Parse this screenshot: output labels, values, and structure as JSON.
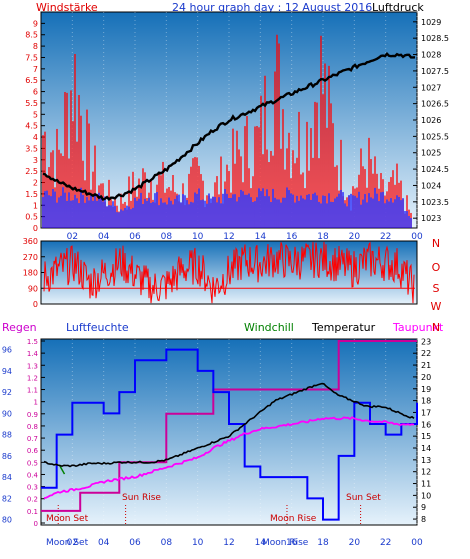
{
  "page": {
    "title": "24 hour graph day : 12 August 2016"
  },
  "colors": {
    "red": "#ff0000",
    "blue": "#0000ff",
    "black": "#000000",
    "green": "#008000",
    "magenta": "#ff00ff",
    "darkmagenta": "#cc0099",
    "sky_top": "#1a7ac2",
    "sky_bottom": "#d9ecfa"
  },
  "chart_data": [
    {
      "id": "wind_pressure",
      "type": "line",
      "title": "24 hour graph day : 12 August 2016",
      "left_label": "Windstärke",
      "right_label": "Luftdruck",
      "x_ticks": [
        "02",
        "04",
        "06",
        "08",
        "10",
        "12",
        "14",
        "16",
        "18",
        "20",
        "22",
        "00"
      ],
      "y_left_ticks": [
        "0",
        "0.5",
        "1",
        "1.5",
        "2",
        "2.5",
        "3",
        "3.5",
        "4",
        "4.5",
        "5",
        "5.5",
        "6",
        "6.5",
        "7",
        "7.5",
        "8",
        "8.5",
        "9"
      ],
      "y_right_ticks": [
        "1023",
        "1023.5",
        "1024",
        "1024.5",
        "1025",
        "1025.5",
        "1026",
        "1026.5",
        "1027",
        "1027.5",
        "1028",
        "1028.5",
        "1029"
      ],
      "ylim_left": [
        0,
        9.5
      ],
      "ylim_right": [
        1022.7,
        1029.3
      ],
      "series": [
        {
          "name": "Windstärke",
          "color": "red",
          "x": [
            0,
            1,
            2,
            3,
            4,
            5,
            6,
            7,
            8,
            9,
            10,
            11,
            12,
            13,
            14,
            15,
            16,
            17,
            18,
            19,
            20,
            21,
            22,
            23,
            24
          ],
          "values": [
            5.5,
            4,
            9,
            4,
            2,
            1.5,
            2.5,
            3,
            2.5,
            2,
            3,
            2,
            3.5,
            4.5,
            5,
            9,
            5.5,
            5,
            9,
            4.5,
            2,
            4,
            2,
            2.5,
            0.5
          ]
        },
        {
          "name": "Böen",
          "color": "blue",
          "x": [
            0,
            1,
            2,
            3,
            4,
            5,
            6,
            7,
            8,
            9,
            10,
            11,
            12,
            13,
            14,
            15,
            16,
            17,
            18,
            19,
            20,
            21,
            22,
            23,
            24
          ],
          "values": [
            1.8,
            1.8,
            1.8,
            1.8,
            1.5,
            1,
            1.5,
            1.8,
            1.5,
            1.5,
            1.8,
            1.5,
            1.8,
            1.8,
            1.8,
            1.8,
            1.8,
            1.8,
            1.8,
            1.8,
            1.5,
            1.8,
            1.8,
            1.8,
            0.5
          ]
        },
        {
          "name": "Luftdruck",
          "color": "black",
          "x": [
            0,
            1,
            2,
            3,
            4,
            5,
            6,
            7,
            8,
            9,
            10,
            11,
            12,
            13,
            14,
            15,
            16,
            17,
            18,
            19,
            20,
            21,
            22,
            23,
            24
          ],
          "values": [
            1024.4,
            1024.1,
            1023.9,
            1023.75,
            1023.6,
            1023.7,
            1023.9,
            1024.2,
            1024.5,
            1024.9,
            1025.3,
            1025.7,
            1026.0,
            1026.2,
            1026.4,
            1026.6,
            1026.8,
            1027.0,
            1027.2,
            1027.4,
            1027.6,
            1027.8,
            1028.0,
            1028.0,
            1027.9
          ]
        }
      ]
    },
    {
      "id": "wind_direction",
      "type": "line",
      "y_left_ticks": [
        "0",
        "90",
        "180",
        "270",
        "360"
      ],
      "y_right_labels": [
        "N",
        "W",
        "S",
        "O",
        "N"
      ],
      "ylim": [
        0,
        360
      ],
      "series": [
        {
          "name": "Windrichtung",
          "color": "red",
          "x": [
            0,
            1,
            2,
            3,
            4,
            5,
            6,
            7,
            8,
            9,
            10,
            11,
            12,
            13,
            14,
            15,
            16,
            17,
            18,
            19,
            20,
            21,
            22,
            23,
            24
          ],
          "values": [
            150,
            200,
            230,
            120,
            180,
            240,
            160,
            90,
            110,
            200,
            220,
            90,
            180,
            250,
            230,
            260,
            240,
            250,
            260,
            230,
            200,
            250,
            240,
            220,
            90
          ]
        }
      ]
    },
    {
      "id": "temp_humidity",
      "type": "line",
      "legend": [
        "Regen",
        "Luftfeuchte",
        "Windchill",
        "Temperatur",
        "Taupunkt"
      ],
      "y_left1_ticks": [
        "0",
        "0.1",
        "0.2",
        "0.3",
        "0.4",
        "0.5",
        "0.6",
        "0.7",
        "0.8",
        "0.9",
        "1",
        "1.1",
        "1.2",
        "1.3",
        "1.4",
        "1.5"
      ],
      "y_left2_ticks": [
        "80",
        "82",
        "84",
        "86",
        "88",
        "90",
        "92",
        "94",
        "96"
      ],
      "y_right_ticks": [
        "8",
        "9",
        "10",
        "11",
        "12",
        "13",
        "14",
        "15",
        "16",
        "17",
        "18",
        "19",
        "20",
        "21",
        "22",
        "23"
      ],
      "ylim_rain": [
        0,
        1.5
      ],
      "ylim_humidity": [
        79.5,
        97
      ],
      "ylim_temp": [
        7.5,
        23.2
      ],
      "annotations": {
        "moonset": "Moon Set",
        "sunrise": "Sun Rise",
        "moonrise": "Moon Rise",
        "sunset": "Sun Set"
      },
      "bottom_labels": [
        "Moon Set",
        "Moon Rise"
      ],
      "series": [
        {
          "name": "Regen",
          "color": "darkmagenta",
          "x": [
            0,
            2.5,
            2.5,
            5,
            5,
            8,
            8,
            11,
            11,
            12.5,
            12.5,
            19,
            19,
            24
          ],
          "values": [
            0.1,
            0.1,
            0.25,
            0.25,
            0.5,
            0.5,
            0.9,
            0.9,
            1.1,
            1.1,
            1.1,
            1.1,
            1.5,
            1.5
          ]
        },
        {
          "name": "Luftfeuchte",
          "color": "blue",
          "x": [
            0,
            1,
            2,
            3,
            4,
            5,
            6,
            7,
            8,
            9,
            10,
            11,
            12,
            13,
            14,
            15,
            16,
            17,
            18,
            19,
            20,
            21,
            22,
            23,
            24
          ],
          "values": [
            83,
            88,
            91,
            91,
            90,
            92,
            95,
            95,
            96,
            96,
            94,
            92,
            89,
            85,
            84,
            84,
            84,
            82,
            80,
            86,
            91,
            89,
            88,
            89,
            91
          ]
        },
        {
          "name": "Windchill",
          "color": "green",
          "x": [
            1.2,
            1.5
          ],
          "values": [
            12.5,
            11.8
          ]
        },
        {
          "name": "Temperatur",
          "color": "black",
          "x": [
            0,
            1,
            2,
            3,
            4,
            5,
            6,
            7,
            8,
            9,
            10,
            11,
            12,
            13,
            14,
            15,
            16,
            17,
            18,
            19,
            20,
            21,
            22,
            23,
            24
          ],
          "values": [
            12.8,
            12.5,
            12.5,
            12.7,
            12.7,
            12.8,
            12.8,
            12.8,
            13.0,
            13.5,
            14,
            14.5,
            15,
            16,
            17,
            18,
            18.5,
            19,
            19.5,
            18.5,
            18,
            17.5,
            17.5,
            17,
            16.5
          ]
        },
        {
          "name": "Taupunkt",
          "color": "magenta",
          "x": [
            0,
            1,
            2,
            3,
            4,
            5,
            6,
            7,
            8,
            9,
            10,
            11,
            12,
            13,
            14,
            15,
            16,
            17,
            18,
            19,
            20,
            21,
            22,
            23,
            24
          ],
          "values": [
            9.8,
            10.3,
            10.5,
            10.8,
            11.2,
            11.4,
            11.6,
            12,
            12.4,
            12.8,
            13.2,
            14,
            14.6,
            15.2,
            15.6,
            15.8,
            16,
            16.2,
            16.5,
            16.5,
            16.5,
            16.3,
            16.2,
            16,
            16
          ]
        }
      ]
    }
  ]
}
